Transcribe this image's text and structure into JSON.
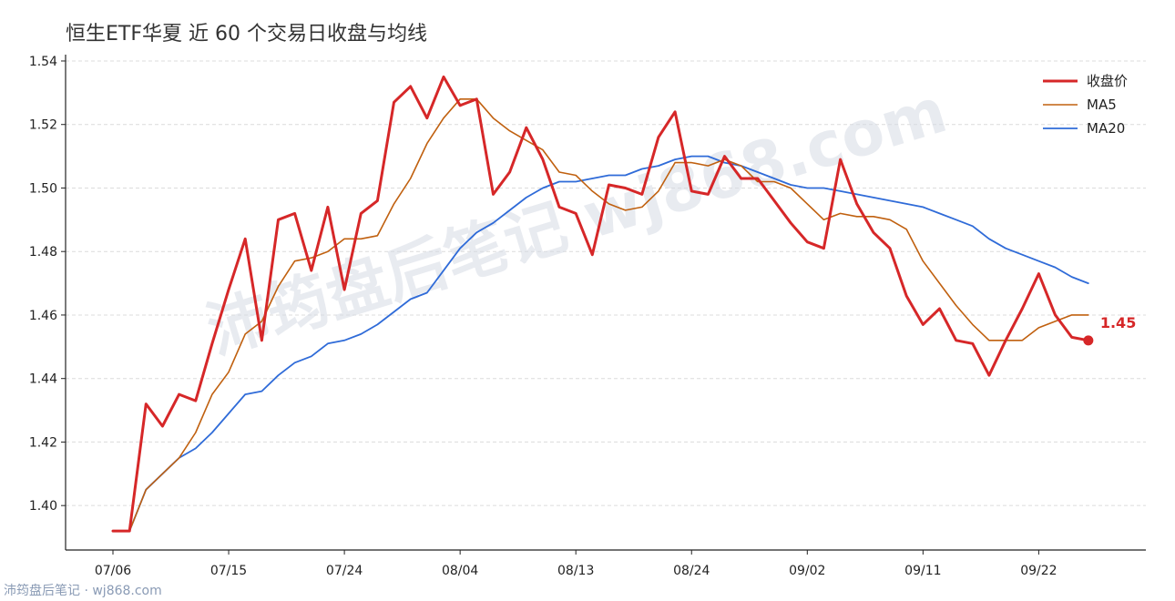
{
  "chart_data": {
    "type": "line",
    "title": "恒生ETF华夏 近 60 个交易日收盘与均线",
    "xlabel": "",
    "ylabel": "",
    "ylim": [
      1.386,
      1.542
    ],
    "yticks": [
      "1.40",
      "1.42",
      "1.44",
      "1.46",
      "1.48",
      "1.50",
      "1.52",
      "1.54"
    ],
    "xtick_labels": [
      "07/06",
      "07/15",
      "07/24",
      "08/04",
      "08/13",
      "08/24",
      "09/02",
      "09/11",
      "09/22"
    ],
    "xtick_indices": [
      0,
      7,
      14,
      21,
      28,
      35,
      42,
      49,
      56
    ],
    "grid": "horizontal-dashed",
    "legend_position": "top-right",
    "series": [
      {
        "name": "收盘价",
        "color": "#d62728",
        "values": [
          1.392,
          1.392,
          1.432,
          1.425,
          1.435,
          1.433,
          1.451,
          1.468,
          1.484,
          1.452,
          1.49,
          1.492,
          1.474,
          1.494,
          1.468,
          1.492,
          1.496,
          1.527,
          1.532,
          1.522,
          1.535,
          1.526,
          1.528,
          1.498,
          1.505,
          1.519,
          1.509,
          1.494,
          1.492,
          1.479,
          1.501,
          1.5,
          1.498,
          1.516,
          1.524,
          1.499,
          1.498,
          1.51,
          1.503,
          1.503,
          1.496,
          1.489,
          1.483,
          1.481,
          1.509,
          1.495,
          1.486,
          1.481,
          1.466,
          1.457,
          1.462,
          1.452,
          1.451,
          1.441,
          1.452,
          1.462,
          1.473,
          1.46,
          1.453,
          1.452
        ]
      },
      {
        "name": "MA5",
        "color": "#c0600f",
        "values": [
          1.392,
          1.392,
          1.405,
          1.41,
          1.415,
          1.423,
          1.435,
          1.442,
          1.454,
          1.458,
          1.469,
          1.477,
          1.478,
          1.48,
          1.484,
          1.484,
          1.485,
          1.495,
          1.503,
          1.514,
          1.522,
          1.528,
          1.528,
          1.522,
          1.518,
          1.515,
          1.512,
          1.505,
          1.504,
          1.499,
          1.495,
          1.493,
          1.494,
          1.499,
          1.508,
          1.508,
          1.507,
          1.509,
          1.507,
          1.502,
          1.502,
          1.5,
          1.495,
          1.49,
          1.492,
          1.491,
          1.491,
          1.49,
          1.487,
          1.477,
          1.47,
          1.463,
          1.457,
          1.452,
          1.452,
          1.452,
          1.456,
          1.458,
          1.46,
          1.46
        ]
      },
      {
        "name": "MA20",
        "color": "#2f6bd8",
        "values": [
          1.392,
          1.392,
          1.405,
          1.41,
          1.415,
          1.418,
          1.423,
          1.429,
          1.435,
          1.436,
          1.441,
          1.445,
          1.447,
          1.451,
          1.452,
          1.454,
          1.457,
          1.461,
          1.465,
          1.467,
          1.474,
          1.481,
          1.486,
          1.489,
          1.493,
          1.497,
          1.5,
          1.502,
          1.502,
          1.503,
          1.504,
          1.504,
          1.506,
          1.507,
          1.509,
          1.51,
          1.51,
          1.508,
          1.507,
          1.505,
          1.503,
          1.501,
          1.5,
          1.5,
          1.499,
          1.498,
          1.497,
          1.496,
          1.495,
          1.494,
          1.492,
          1.49,
          1.488,
          1.484,
          1.481,
          1.479,
          1.477,
          1.475,
          1.472,
          1.47
        ]
      }
    ],
    "last_value_label": "1.45"
  },
  "watermark_text": "沛筠盘后笔记 wj868.com",
  "footer_text": "沛筠盘后笔记 · wj868.com"
}
